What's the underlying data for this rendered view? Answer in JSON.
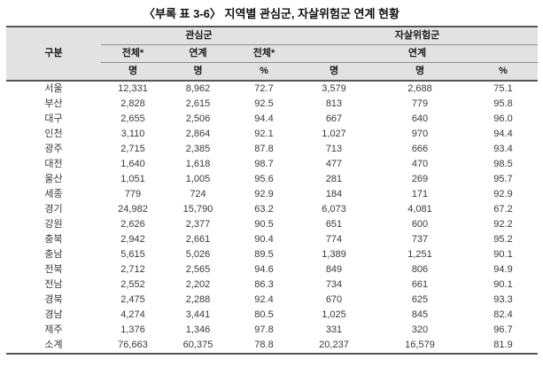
{
  "title": "〈부록 표 3-6〉 지역별 관심군, 자살위험군 연계 현황",
  "table": {
    "header": {
      "category": "구분",
      "group1": "관심군",
      "group2": "자살위험군",
      "sub": [
        "전체*",
        "연계",
        "전체*",
        "연계"
      ],
      "units": [
        "명",
        "명",
        "%",
        "명",
        "명",
        "%"
      ]
    },
    "rows": [
      {
        "region": "서울",
        "values": [
          "12,331",
          "8,962",
          "72.7",
          "3,579",
          "2,688",
          "75.1"
        ]
      },
      {
        "region": "부산",
        "values": [
          "2,828",
          "2,615",
          "92.5",
          "813",
          "779",
          "95.8"
        ]
      },
      {
        "region": "대구",
        "values": [
          "2,655",
          "2,506",
          "94.4",
          "667",
          "640",
          "96.0"
        ]
      },
      {
        "region": "인천",
        "values": [
          "3,110",
          "2,864",
          "92.1",
          "1,027",
          "970",
          "94.4"
        ]
      },
      {
        "region": "광주",
        "values": [
          "2,715",
          "2,385",
          "87.8",
          "713",
          "666",
          "93.4"
        ]
      },
      {
        "region": "대전",
        "values": [
          "1,640",
          "1,618",
          "98.7",
          "477",
          "470",
          "98.5"
        ]
      },
      {
        "region": "울산",
        "values": [
          "1,051",
          "1,005",
          "95.6",
          "281",
          "269",
          "95.7"
        ]
      },
      {
        "region": "세종",
        "values": [
          "779",
          "724",
          "92.9",
          "184",
          "171",
          "92.9"
        ]
      },
      {
        "region": "경기",
        "values": [
          "24,982",
          "15,790",
          "63.2",
          "6,073",
          "4,081",
          "67.2"
        ]
      },
      {
        "region": "강원",
        "values": [
          "2,626",
          "2,377",
          "90.5",
          "651",
          "600",
          "92.2"
        ]
      },
      {
        "region": "충북",
        "values": [
          "2,942",
          "2,661",
          "90.4",
          "774",
          "737",
          "95.2"
        ]
      },
      {
        "region": "충남",
        "values": [
          "5,615",
          "5,026",
          "89.5",
          "1,389",
          "1,251",
          "90.1"
        ]
      },
      {
        "region": "전북",
        "values": [
          "2,712",
          "2,565",
          "94.6",
          "849",
          "806",
          "94.9"
        ]
      },
      {
        "region": "전남",
        "values": [
          "2,552",
          "2,202",
          "86.3",
          "734",
          "661",
          "90.1"
        ]
      },
      {
        "region": "경북",
        "values": [
          "2,475",
          "2,288",
          "92.4",
          "670",
          "625",
          "93.3"
        ]
      },
      {
        "region": "경남",
        "values": [
          "4,274",
          "3,441",
          "80.5",
          "1,025",
          "845",
          "82.4"
        ]
      },
      {
        "region": "제주",
        "values": [
          "1,376",
          "1,346",
          "97.8",
          "331",
          "320",
          "96.7"
        ]
      },
      {
        "region": "소계",
        "values": [
          "76,663",
          "60,375",
          "78.8",
          "20,237",
          "16,579",
          "81.9"
        ]
      }
    ]
  }
}
